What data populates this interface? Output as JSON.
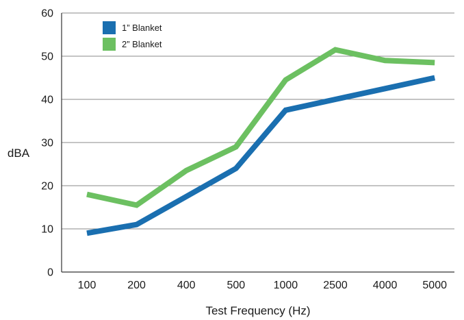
{
  "chart_data": {
    "type": "line",
    "title": "",
    "xlabel": "Test Frequency (Hz)",
    "ylabel": "dBA",
    "categories": [
      "100",
      "200",
      "400",
      "500",
      "1000",
      "2500",
      "4000",
      "5000"
    ],
    "ylim": [
      0,
      60
    ],
    "yticks": [
      0,
      10,
      20,
      30,
      40,
      50,
      60
    ],
    "grid": "horizontal",
    "legend_position": "top-left",
    "series": [
      {
        "name": "1” Blanket",
        "color": "#1a6fb0",
        "x": [
          0,
          1,
          2,
          3,
          4,
          5,
          6,
          7
        ],
        "values": [
          9,
          11,
          17.5,
          24,
          37.5,
          40,
          42.5,
          45
        ]
      },
      {
        "name": "2” Blanket",
        "color": "#6cc061",
        "x": [
          0,
          1,
          2,
          3,
          4,
          5,
          6,
          7
        ],
        "values": [
          18,
          15.5,
          23.5,
          29,
          44.5,
          51.5,
          49,
          48.5
        ]
      }
    ]
  }
}
